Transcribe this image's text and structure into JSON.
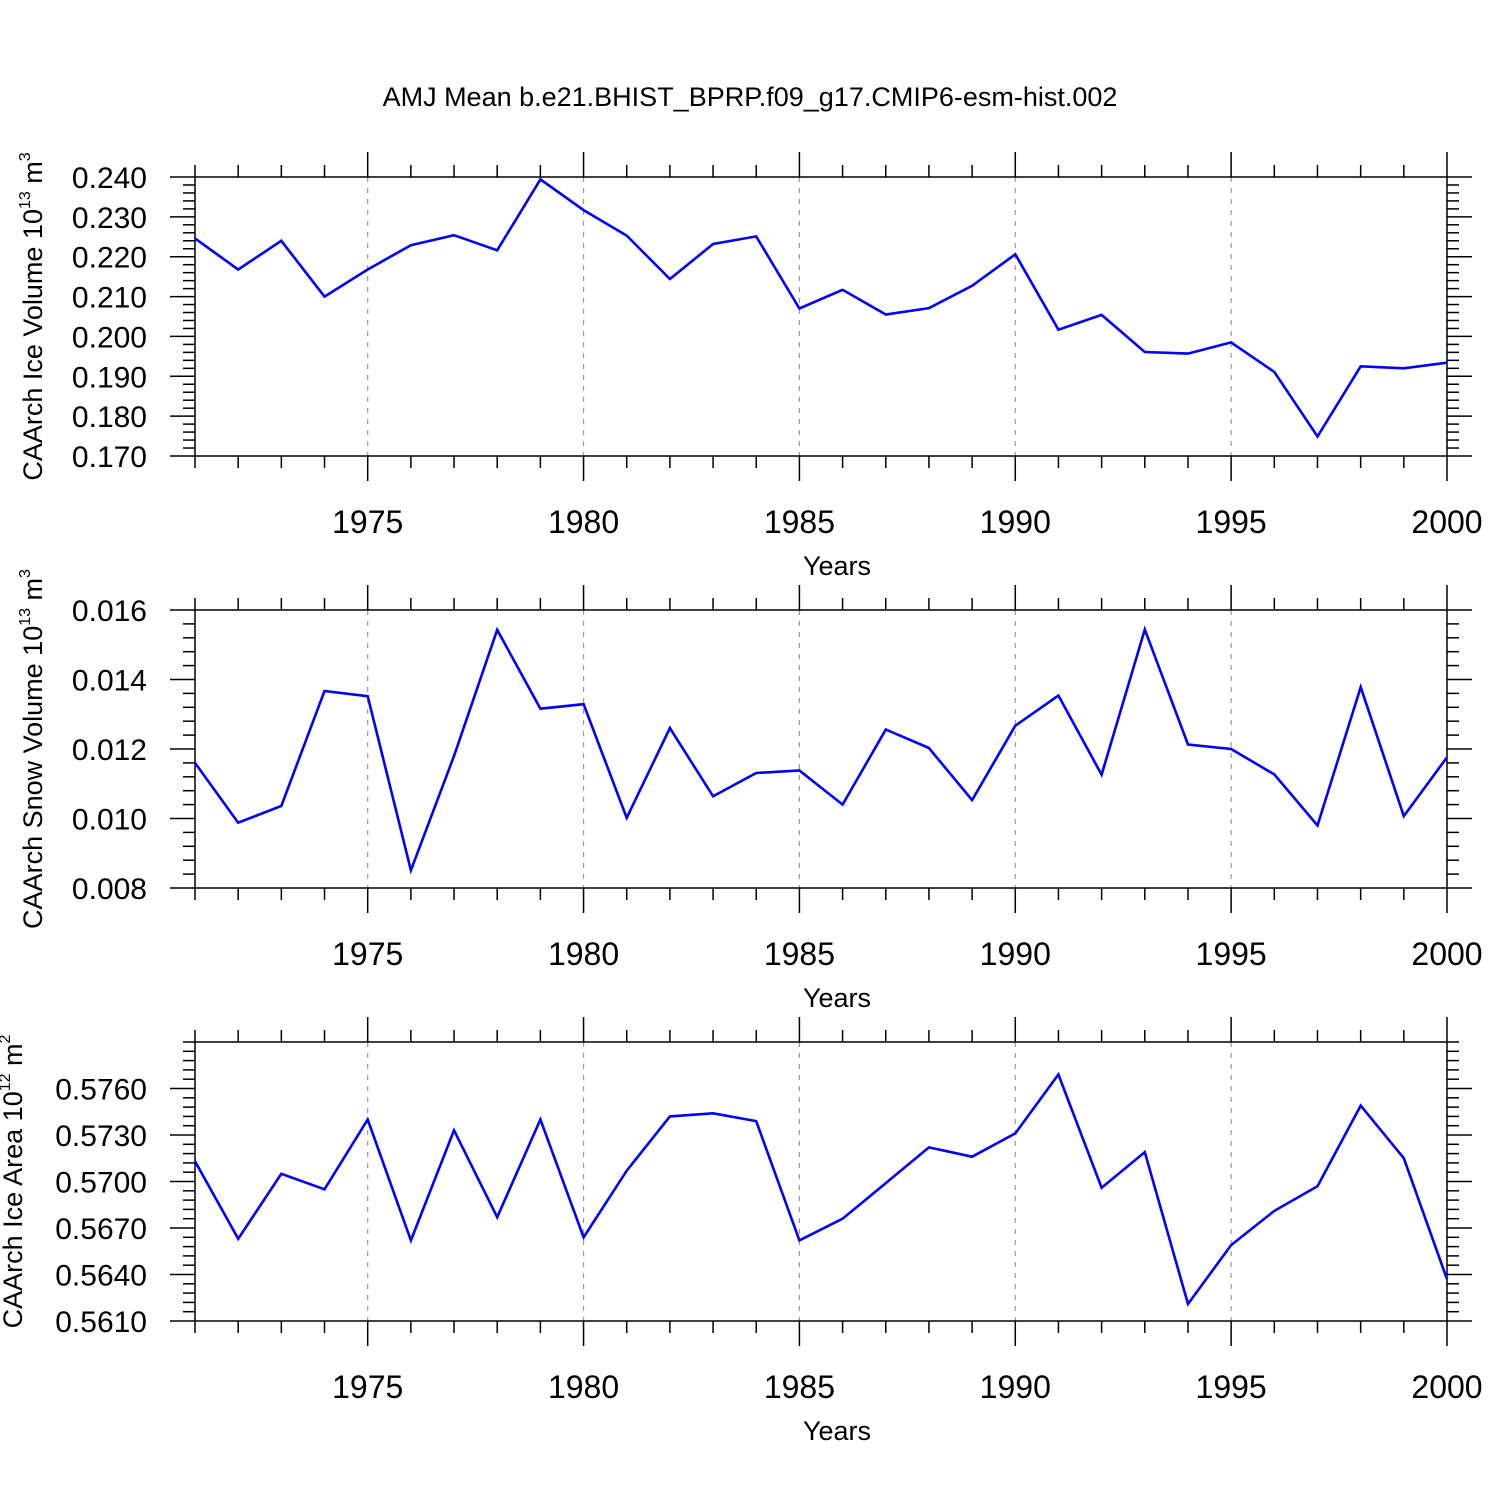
{
  "title": "AMJ Mean b.e21.BHIST_BPRP.f09_g17.CMIP6-esm-hist.002",
  "colors": {
    "line": "#0000ff",
    "axis": "#000000",
    "grid": "#999999"
  },
  "chart_data": [
    {
      "type": "line",
      "xlabel": "Years",
      "ylabel_text": "CAArch Ice Volume 10",
      "ylabel_exp": "13",
      "ylabel_unit": " m",
      "ylabel_unit_exp": "3",
      "x": [
        1971,
        1972,
        1973,
        1974,
        1975,
        1976,
        1977,
        1978,
        1979,
        1980,
        1981,
        1982,
        1983,
        1984,
        1985,
        1986,
        1987,
        1988,
        1989,
        1990,
        1991,
        1992,
        1993,
        1994,
        1995,
        1996,
        1997,
        1998,
        1999,
        2000
      ],
      "values": [
        0.2246,
        0.2168,
        0.224,
        0.21,
        0.2168,
        0.2229,
        0.2254,
        0.2216,
        0.2394,
        0.2317,
        0.2253,
        0.2144,
        0.2232,
        0.2251,
        0.207,
        0.2117,
        0.2055,
        0.2071,
        0.2127,
        0.2206,
        0.2017,
        0.2054,
        0.1961,
        0.1957,
        0.1985,
        0.1911,
        0.1749,
        0.1925,
        0.192,
        0.1934
      ],
      "xlim": [
        1971,
        2000
      ],
      "ylim": [
        0.17,
        0.24
      ],
      "xticks": [
        1975,
        1980,
        1985,
        1990,
        1995,
        2000
      ],
      "xtick_labels": [
        "1975",
        "1980",
        "1985",
        "1990",
        "1995",
        "2000"
      ],
      "yticks": [
        0.17,
        0.18,
        0.19,
        0.2,
        0.21,
        0.22,
        0.23,
        0.24
      ],
      "ytick_labels": [
        "0.170",
        "0.180",
        "0.190",
        "0.200",
        "0.210",
        "0.220",
        "0.230",
        "0.240"
      ],
      "grid": "dashed vertical at major x ticks"
    },
    {
      "type": "line",
      "xlabel": "Years",
      "ylabel_text": "CAArch Snow Volume 10",
      "ylabel_exp": "13",
      "ylabel_unit": " m",
      "ylabel_unit_exp": "3",
      "x": [
        1971,
        1972,
        1973,
        1974,
        1975,
        1976,
        1977,
        1978,
        1979,
        1980,
        1981,
        1982,
        1983,
        1984,
        1985,
        1986,
        1987,
        1988,
        1989,
        1990,
        1991,
        1992,
        1993,
        1994,
        1995,
        1996,
        1997,
        1998,
        1999,
        2000
      ],
      "values": [
        0.0116,
        0.00988,
        0.01036,
        0.01367,
        0.01352,
        0.00851,
        0.0118,
        0.01543,
        0.01316,
        0.01329,
        0.01002,
        0.0126,
        0.01064,
        0.01131,
        0.01138,
        0.0104,
        0.01256,
        0.01203,
        0.01053,
        0.01267,
        0.01354,
        0.01126,
        0.01544,
        0.01213,
        0.012,
        0.01127,
        0.0098,
        0.01378,
        0.01007,
        0.01176
      ],
      "xlim": [
        1971,
        2000
      ],
      "ylim": [
        0.008,
        0.016
      ],
      "xticks": [
        1975,
        1980,
        1985,
        1990,
        1995,
        2000
      ],
      "xtick_labels": [
        "1975",
        "1980",
        "1985",
        "1990",
        "1995",
        "2000"
      ],
      "yticks": [
        0.008,
        0.01,
        0.012,
        0.014,
        0.016
      ],
      "ytick_labels": [
        "0.008",
        "0.010",
        "0.012",
        "0.014",
        "0.016"
      ],
      "grid": "dashed vertical at major x ticks"
    },
    {
      "type": "line",
      "xlabel": "Years",
      "ylabel_text": "CAArch Ice Area 10",
      "ylabel_exp": "12",
      "ylabel_unit": " m",
      "ylabel_unit_exp": "2",
      "x": [
        1971,
        1972,
        1973,
        1974,
        1975,
        1976,
        1977,
        1978,
        1979,
        1980,
        1981,
        1982,
        1983,
        1984,
        1985,
        1986,
        1987,
        1988,
        1989,
        1990,
        1991,
        1992,
        1993,
        1994,
        1995,
        1996,
        1997,
        1998,
        1999,
        2000
      ],
      "values": [
        0.5713,
        0.5663,
        0.5705,
        0.5695,
        0.574,
        0.5662,
        0.5733,
        0.5677,
        0.574,
        0.5664,
        0.5707,
        0.5742,
        0.5744,
        0.5739,
        0.5662,
        0.5676,
        0.5699,
        0.5722,
        0.5716,
        0.5731,
        0.5769,
        0.5696,
        0.5719,
        0.5621,
        0.5659,
        0.5681,
        0.5697,
        0.5749,
        0.5715,
        0.5637
      ],
      "xlim": [
        1971,
        2000
      ],
      "ylim": [
        0.561,
        0.579
      ],
      "xticks": [
        1975,
        1980,
        1985,
        1990,
        1995,
        2000
      ],
      "xtick_labels": [
        "1975",
        "1980",
        "1985",
        "1990",
        "1995",
        "2000"
      ],
      "yticks": [
        0.561,
        0.564,
        0.567,
        0.57,
        0.573,
        0.576
      ],
      "ytick_labels": [
        "0.5610",
        "0.5640",
        "0.5670",
        "0.5700",
        "0.5730",
        "0.5760"
      ],
      "grid": "dashed vertical at major x ticks"
    }
  ]
}
